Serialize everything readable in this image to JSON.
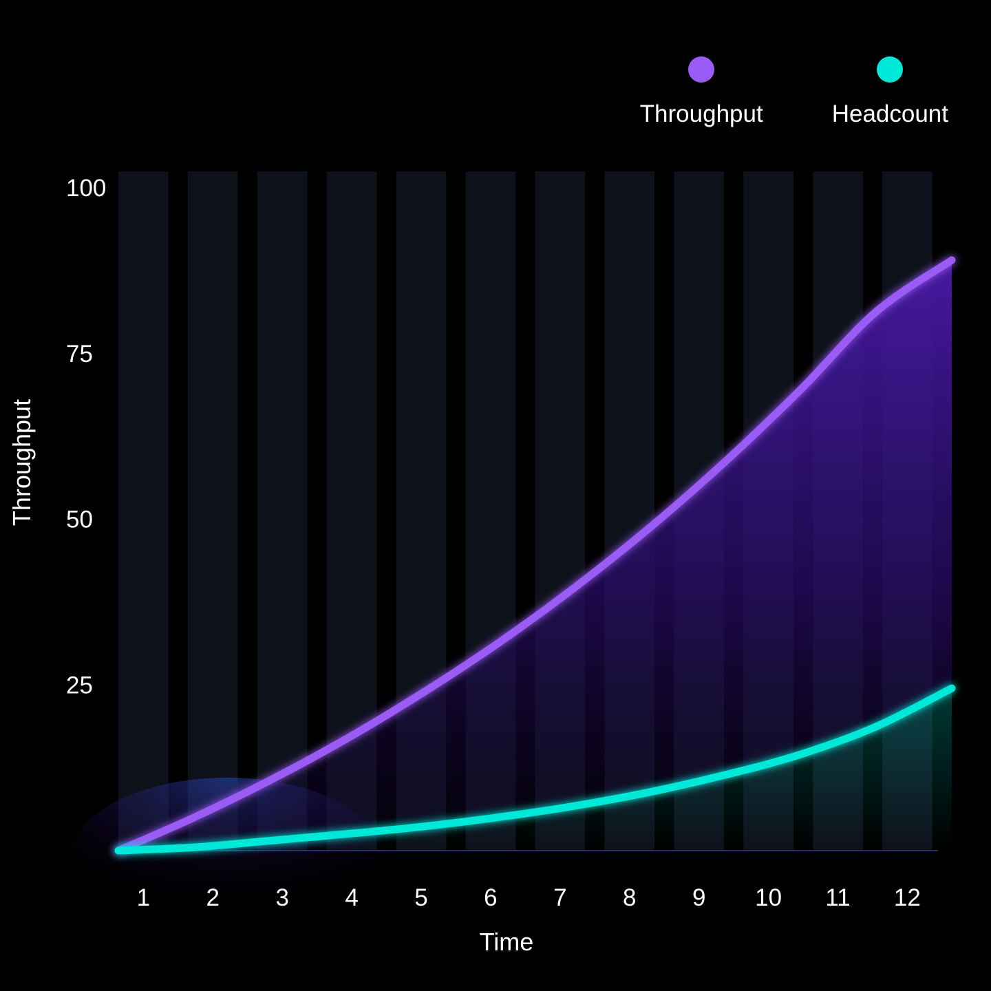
{
  "chart_data": {
    "type": "line",
    "title": "",
    "xlabel": "Time",
    "ylabel": "Throughput",
    "categories": [
      "1",
      "2",
      "3",
      "4",
      "5",
      "6",
      "7",
      "8",
      "9",
      "10",
      "11",
      "12"
    ],
    "x": [
      1,
      2,
      3,
      4,
      5,
      6,
      7,
      8,
      9,
      10,
      11,
      12
    ],
    "ylim": [
      0,
      100
    ],
    "yticks": [
      25,
      50,
      75,
      100
    ],
    "series": [
      {
        "name": "Throughput",
        "color": "#9b5cf6",
        "area": true,
        "values": [
          0.0,
          5.0,
          10.6,
          16.8,
          23.7,
          31.2,
          39.5,
          48.6,
          58.6,
          69.5,
          81.3,
          89.1
        ]
      },
      {
        "name": "Headcount",
        "color": "#00e8d8",
        "area": false,
        "values": [
          0.0,
          0.5,
          1.5,
          2.5,
          3.6,
          5.0,
          6.7,
          8.8,
          11.4,
          14.5,
          18.7,
          24.5
        ]
      }
    ],
    "legend": "top-right",
    "grid": "alternating vertical bands"
  }
}
